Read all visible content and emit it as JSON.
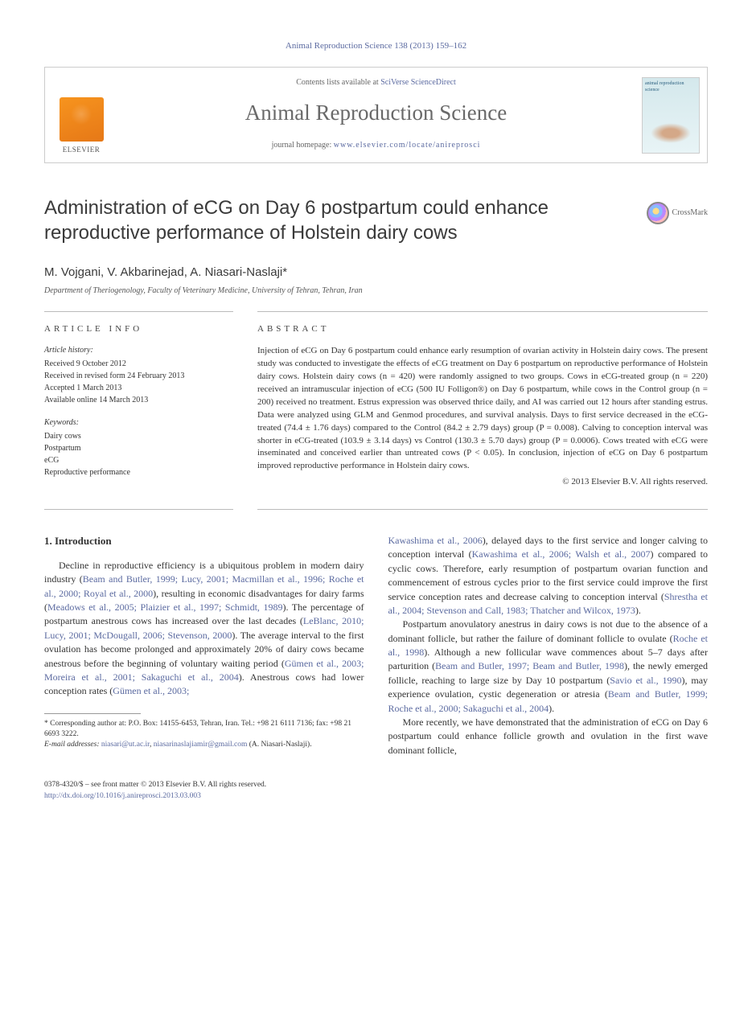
{
  "citation": "Animal Reproduction Science 138 (2013) 159–162",
  "header": {
    "contents_prefix": "Contents lists available at ",
    "contents_link": "SciVerse ScienceDirect",
    "journal_name": "Animal Reproduction Science",
    "homepage_prefix": "journal homepage: ",
    "homepage_link": "www.elsevier.com/locate/anireprosci",
    "publisher_label": "ELSEVIER",
    "cover_text": "animal reproduction science"
  },
  "crossmark_label": "CrossMark",
  "title": "Administration of eCG on Day 6 postpartum could enhance reproductive performance of Holstein dairy cows",
  "authors": "M. Vojgani, V. Akbarinejad, A. Niasari-Naslaji",
  "corr_marker": "*",
  "affiliation": "Department of Theriogenology, Faculty of Veterinary Medicine, University of Tehran, Tehran, Iran",
  "article_info": {
    "heading": "ARTICLE INFO",
    "history_label": "Article history:",
    "received": "Received 9 October 2012",
    "revised": "Received in revised form 24 February 2013",
    "accepted": "Accepted 1 March 2013",
    "online": "Available online 14 March 2013",
    "keywords_label": "Keywords:",
    "keywords": [
      "Dairy cows",
      "Postpartum",
      "eCG",
      "Reproductive performance"
    ]
  },
  "abstract": {
    "heading": "ABSTRACT",
    "text": "Injection of eCG on Day 6 postpartum could enhance early resumption of ovarian activity in Holstein dairy cows. The present study was conducted to investigate the effects of eCG treatment on Day 6 postpartum on reproductive performance of Holstein dairy cows. Holstein dairy cows (n = 420) were randomly assigned to two groups. Cows in eCG-treated group (n = 220) received an intramuscular injection of eCG (500 IU Folligon®) on Day 6 postpartum, while cows in the Control group (n = 200) received no treatment. Estrus expression was observed thrice daily, and AI was carried out 12 hours after standing estrus. Data were analyzed using GLM and Genmod procedures, and survival analysis. Days to first service decreased in the eCG-treated (74.4 ± 1.76 days) compared to the Control (84.2 ± 2.79 days) group (P = 0.008). Calving to conception interval was shorter in eCG-treated (103.9 ± 3.14 days) vs Control (130.3 ± 5.70 days) group (P = 0.0006). Cows treated with eCG were inseminated and conceived earlier than untreated cows (P < 0.05). In conclusion, injection of eCG on Day 6 postpartum improved reproductive performance in Holstein dairy cows.",
    "copyright": "© 2013 Elsevier B.V. All rights reserved."
  },
  "body": {
    "intro_heading": "1. Introduction",
    "col1_p1_a": "Decline in reproductive efficiency is a ubiquitous problem in modern dairy industry (",
    "col1_p1_cite1": "Beam and Butler, 1999; Lucy, 2001; Macmillan et al., 1996; Roche et al., 2000; Royal et al., 2000",
    "col1_p1_b": "), resulting in economic disadvantages for dairy farms (",
    "col1_p1_cite2": "Meadows et al., 2005; Plaizier et al., 1997; Schmidt, 1989",
    "col1_p1_c": "). The percentage of postpartum anestrous cows has increased over the last decades (",
    "col1_p1_cite3": "LeBlanc, 2010; Lucy, 2001; McDougall, 2006; Stevenson, 2000",
    "col1_p1_d": "). The average interval to the first ovulation has become prolonged and approximately 20% of dairy cows became anestrous before the beginning of voluntary waiting period (",
    "col1_p1_cite4": "Gümen et al., 2003; Moreira et al., 2001; Sakaguchi et al., 2004",
    "col1_p1_e": "). Anestrous cows had lower conception rates (",
    "col1_p1_cite5": "Gümen et al., 2003;",
    "col2_p1_cite1": "Kawashima et al., 2006",
    "col2_p1_a": "), delayed days to the first service and longer calving to conception interval (",
    "col2_p1_cite2": "Kawashima et al., 2006; Walsh et al., 2007",
    "col2_p1_b": ") compared to cyclic cows. Therefore, early resumption of postpartum ovarian function and commencement of estrous cycles prior to the first service could improve the first service conception rates and decrease calving to conception interval (",
    "col2_p1_cite3": "Shrestha et al., 2004; Stevenson and Call, 1983; Thatcher and Wilcox, 1973",
    "col2_p1_c": ").",
    "col2_p2_a": "Postpartum anovulatory anestrus in dairy cows is not due to the absence of a dominant follicle, but rather the failure of dominant follicle to ovulate (",
    "col2_p2_cite1": "Roche et al., 1998",
    "col2_p2_b": "). Although a new follicular wave commences about 5–7 days after parturition (",
    "col2_p2_cite2": "Beam and Butler, 1997; Beam and Butler, 1998",
    "col2_p2_c": "), the newly emerged follicle, reaching to large size by Day 10 postpartum (",
    "col2_p2_cite3": "Savio et al., 1990",
    "col2_p2_d": "), may experience ovulation, cystic degeneration or atresia (",
    "col2_p2_cite4": "Beam and Butler, 1999; Roche et al., 2000; Sakaguchi et al., 2004",
    "col2_p2_e": ").",
    "col2_p3_a": "More recently, we have demonstrated that the administration of eCG on Day 6 postpartum could enhance follicle growth and ovulation in the first wave dominant follicle,"
  },
  "footnotes": {
    "corr": "* Corresponding author at: P.O. Box: 14155-6453, Tehran, Iran. Tel.: +98 21 6111 7136; fax: +98 21 6693 3222.",
    "email_label": "E-mail addresses: ",
    "email1": "niasari@ut.ac.ir",
    "email_sep": ", ",
    "email2": "niasarinaslajiamir@gmail.com",
    "email_tail": " (A. Niasari-Naslaji)."
  },
  "footer": {
    "line1": "0378-4320/$ – see front matter © 2013 Elsevier B.V. All rights reserved.",
    "doi": "http://dx.doi.org/10.1016/j.anireprosci.2013.03.003"
  },
  "colors": {
    "link": "#5b6aa0",
    "text": "#333333",
    "elsevier_orange": "#f7941e"
  }
}
